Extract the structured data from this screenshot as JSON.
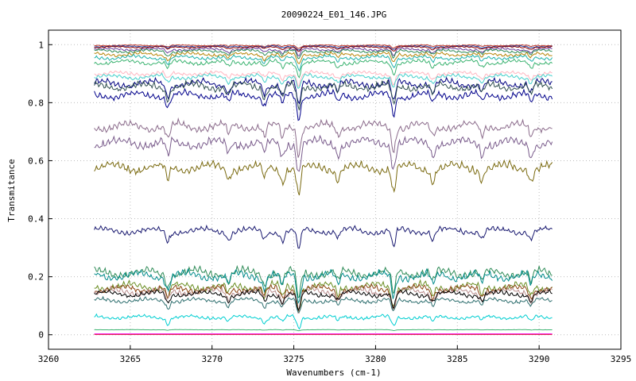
{
  "chart_data": {
    "type": "line",
    "title": "20090224_E01_146.JPG",
    "xlabel": "Wavenumbers (cm-1)",
    "ylabel": "Transmitance",
    "xlim": [
      3260,
      3295
    ],
    "ylim": [
      -0.05,
      1.05
    ],
    "x_ticks": [
      3260,
      3265,
      3270,
      3275,
      3280,
      3285,
      3290,
      3295
    ],
    "y_ticks": [
      0,
      0.2,
      0.4,
      0.6,
      0.8,
      1
    ],
    "y_tick_labels": [
      "0",
      "0.2",
      "0.4",
      "0.6",
      "0.8",
      "1"
    ],
    "x_range_of_data": [
      3262.8,
      3290.8
    ],
    "grid": true,
    "legend": "none",
    "spectral_dips": [
      {
        "x": 3267.3,
        "depth": 0.5
      },
      {
        "x": 3271.0,
        "depth": 0.35
      },
      {
        "x": 3273.2,
        "depth": 0.4
      },
      {
        "x": 3274.3,
        "depth": 0.45
      },
      {
        "x": 3275.3,
        "depth": 1.0
      },
      {
        "x": 3277.7,
        "depth": 0.35
      },
      {
        "x": 3281.1,
        "depth": 0.85
      },
      {
        "x": 3283.5,
        "depth": 0.4
      },
      {
        "x": 3286.5,
        "depth": 0.35
      },
      {
        "x": 3289.5,
        "depth": 0.4
      }
    ],
    "series": [
      {
        "color": "#c0392b",
        "values_baseline": 1.0,
        "dip_scale": 0.01
      },
      {
        "color": "#1f3fa0",
        "values_baseline": 0.997,
        "dip_scale": 0.012
      },
      {
        "color": "#8b0000",
        "values_baseline": 0.995,
        "dip_scale": 0.015
      },
      {
        "color": "#6a3d9a",
        "values_baseline": 0.99,
        "dip_scale": 0.025
      },
      {
        "color": "#2e8b57",
        "values_baseline": 0.985,
        "dip_scale": 0.03
      },
      {
        "color": "#b8860b",
        "values_baseline": 0.975,
        "dip_scale": 0.035
      },
      {
        "color": "#20b2aa",
        "values_baseline": 0.965,
        "dip_scale": 0.04
      },
      {
        "color": "#3cb371",
        "values_baseline": 0.95,
        "dip_scale": 0.045
      },
      {
        "color": "#ffb6c1",
        "values_baseline": 0.91,
        "dip_scale": 0.04
      },
      {
        "color": "#48d1cc",
        "values_baseline": 0.9,
        "dip_scale": 0.045
      },
      {
        "color": "#000080",
        "values_baseline": 0.885,
        "dip_scale": 0.08
      },
      {
        "color": "#2f4f4f",
        "values_baseline": 0.875,
        "dip_scale": 0.08
      },
      {
        "color": "#00008b",
        "values_baseline": 0.845,
        "dip_scale": 0.08
      },
      {
        "color": "#8b6b8b",
        "values_baseline": 0.74,
        "dip_scale": 0.09
      },
      {
        "color": "#7a5c8c",
        "values_baseline": 0.685,
        "dip_scale": 0.1
      },
      {
        "color": "#7a6a10",
        "values_baseline": 0.6,
        "dip_scale": 0.1
      },
      {
        "color": "#191970",
        "values_baseline": 0.375,
        "dip_scale": 0.07
      },
      {
        "color": "#2e8b57",
        "values_baseline": 0.235,
        "dip_scale": 0.09
      },
      {
        "color": "#008b8b",
        "values_baseline": 0.225,
        "dip_scale": 0.09
      },
      {
        "color": "#6b8e23",
        "values_baseline": 0.185,
        "dip_scale": 0.08
      },
      {
        "color": "#8b4513",
        "values_baseline": 0.175,
        "dip_scale": 0.07
      },
      {
        "color": "#bc8f8f",
        "values_baseline": 0.165,
        "dip_scale": 0.07
      },
      {
        "color": "#000000",
        "values_baseline": 0.155,
        "dip_scale": 0.06
      },
      {
        "color": "#2f6f6f",
        "values_baseline": 0.13,
        "dip_scale": 0.05
      },
      {
        "color": "#00ced1",
        "values_baseline": 0.07,
        "dip_scale": 0.04
      },
      {
        "color": "#3cb371",
        "values_baseline": 0.018,
        "dip_scale": 0.003
      },
      {
        "color": "#ff00ff",
        "values_baseline": 0.003,
        "dip_scale": 0.0
      },
      {
        "color": "#dc143c",
        "values_baseline": 0.001,
        "dip_scale": 0.0
      }
    ]
  }
}
